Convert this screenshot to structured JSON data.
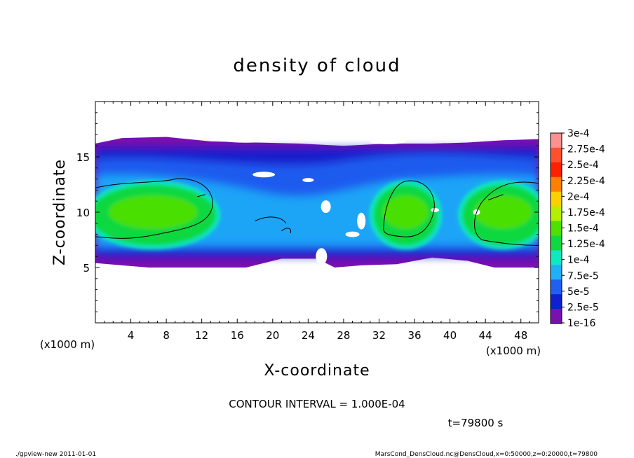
{
  "chart_data": {
    "type": "heatmap",
    "title": "density of cloud",
    "xlabel": "X-coordinate",
    "ylabel": "Z-coordinate",
    "x_unit": "(x1000 m)",
    "z_unit": "(x1000 m)",
    "xlim": [
      0,
      50
    ],
    "ylim": [
      0,
      20
    ],
    "x_ticks": [
      "4",
      "8",
      "12",
      "16",
      "20",
      "24",
      "28",
      "32",
      "36",
      "40",
      "44",
      "48"
    ],
    "y_ticks": [
      "5",
      "10",
      "15"
    ],
    "colorbar": {
      "labels": [
        "3e-4",
        "2.75e-4",
        "2.5e-4",
        "2.25e-4",
        "2e-4",
        "1.75e-4",
        "1.5e-4",
        "1.25e-4",
        "1e-4",
        "7.5e-5",
        "5e-5",
        "2.5e-5",
        "1e-16"
      ],
      "colors": [
        "#ff9090",
        "#ff5030",
        "#ff2000",
        "#ff8000",
        "#ffd000",
        "#b4f000",
        "#50e000",
        "#10d840",
        "#10e8c0",
        "#20b0f8",
        "#2060f0",
        "#1020d0",
        "#7a10b0"
      ]
    },
    "cloud_layer": {
      "top_z_km": 16.8,
      "bottom_z_km": 5.0,
      "high_density_regions": [
        {
          "x_range_km": [
            0,
            13
          ],
          "z_range_km": [
            7,
            12.5
          ],
          "level": "1.5e-4"
        },
        {
          "x_range_km": [
            32,
            38
          ],
          "z_range_km": [
            7,
            12.5
          ],
          "level": "1.5e-4"
        },
        {
          "x_range_km": [
            42,
            50
          ],
          "z_range_km": [
            7,
            12.5
          ],
          "level": "1.5e-4"
        }
      ]
    },
    "contour_interval": "CONTOUR INTERVAL = 1.000E-04",
    "time_label": "t=79800 s"
  },
  "footer": {
    "left": "./gpview-new   2011-01-01",
    "right": "MarsCond_DensCloud.nc@DensCloud,x=0:50000,z=0:20000,t=79800"
  }
}
